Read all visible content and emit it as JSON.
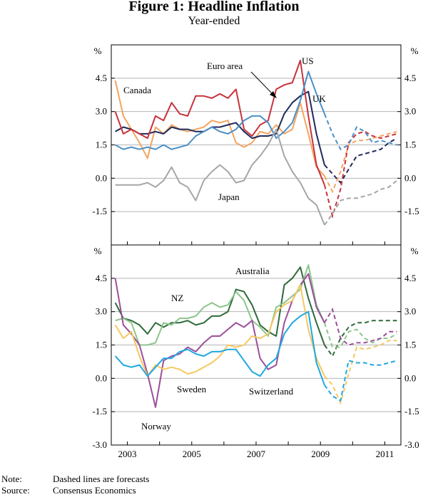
{
  "figure": {
    "title": "Figure 1: Headline Inflation",
    "subtitle": "Year-ended",
    "unit_label": "%"
  },
  "notes": {
    "note_label": "Note:",
    "note_text": "Dashed lines are forecasts",
    "source_label": "Source:",
    "source_text": "Consensus Economics"
  },
  "chart_data": [
    {
      "type": "line",
      "panel": "top",
      "ylabel": "%",
      "ylim": [
        -3.0,
        6.0
      ],
      "yticks": [
        -1.5,
        0.0,
        1.5,
        3.0,
        4.5
      ],
      "ytick_labels": [
        "-1.5",
        "0.0",
        "1.5",
        "3.0",
        "4.5"
      ],
      "xlim": [
        2002.5,
        2011.5
      ],
      "series": [
        {
          "name": "Canada",
          "label": "Canada",
          "color": "#f4a460",
          "x": [
            2002.625,
            2002.875,
            2003.125,
            2003.375,
            2003.625,
            2003.875,
            2004.125,
            2004.375,
            2004.625,
            2004.875,
            2005.125,
            2005.375,
            2005.625,
            2005.875,
            2006.125,
            2006.375,
            2006.625,
            2006.875,
            2007.125,
            2007.375,
            2007.625,
            2007.875,
            2008.125,
            2008.375,
            2008.625,
            2008.875,
            2009.125
          ],
          "y": [
            4.4,
            2.8,
            2.2,
            1.6,
            0.9,
            2.3,
            2.0,
            2.4,
            2.2,
            2.1,
            2.2,
            2.3,
            2.6,
            2.5,
            2.6,
            1.6,
            1.4,
            1.6,
            2.1,
            2.0,
            2.4,
            2.0,
            2.2,
            3.4,
            2.0,
            0.5,
            0.1
          ],
          "forecast": {
            "x": [
              2009.125,
              2009.375,
              2009.625,
              2009.875,
              2010.125,
              2010.375,
              2010.625,
              2010.875,
              2011.125,
              2011.375
            ],
            "y": [
              0.1,
              -0.6,
              0.3,
              1.5,
              1.7,
              1.7,
              1.8,
              1.9,
              2.0,
              2.1
            ]
          }
        },
        {
          "name": "Euro area",
          "label": "Euro area",
          "color": "#1f2a5c",
          "x": [
            2002.625,
            2002.875,
            2003.125,
            2003.375,
            2003.625,
            2003.875,
            2004.125,
            2004.375,
            2004.625,
            2004.875,
            2005.125,
            2005.375,
            2005.625,
            2005.875,
            2006.125,
            2006.375,
            2006.625,
            2006.875,
            2007.125,
            2007.375,
            2007.625,
            2007.875,
            2008.125,
            2008.375,
            2008.625,
            2008.875,
            2009.125
          ],
          "y": [
            2.1,
            2.3,
            2.2,
            2.0,
            2.0,
            2.1,
            2.0,
            2.3,
            2.2,
            2.2,
            2.1,
            2.1,
            2.3,
            2.3,
            2.4,
            2.5,
            2.1,
            1.8,
            1.9,
            1.9,
            2.0,
            2.9,
            3.4,
            3.7,
            3.9,
            2.0,
            0.6
          ],
          "forecast": {
            "x": [
              2009.125,
              2009.375,
              2009.625,
              2009.875,
              2010.125,
              2010.375,
              2010.625,
              2010.875,
              2011.125,
              2011.375
            ],
            "y": [
              0.6,
              0.2,
              -0.2,
              0.4,
              1.0,
              1.1,
              1.2,
              1.3,
              1.6,
              1.8
            ]
          }
        },
        {
          "name": "US",
          "label": "US",
          "color": "#c8323c",
          "x": [
            2002.625,
            2002.875,
            2003.125,
            2003.375,
            2003.625,
            2003.875,
            2004.125,
            2004.375,
            2004.625,
            2004.875,
            2005.125,
            2005.375,
            2005.625,
            2005.875,
            2006.125,
            2006.375,
            2006.625,
            2006.875,
            2007.125,
            2007.375,
            2007.625,
            2007.875,
            2008.125,
            2008.375,
            2008.625,
            2008.875,
            2009.125
          ],
          "y": [
            3.0,
            2.0,
            2.2,
            2.0,
            1.8,
            2.8,
            2.6,
            3.4,
            2.9,
            2.8,
            3.7,
            3.7,
            3.6,
            3.8,
            3.6,
            4.0,
            2.2,
            1.9,
            2.4,
            2.6,
            4.0,
            4.2,
            4.3,
            5.3,
            2.8,
            0.6,
            -0.3
          ],
          "forecast": {
            "x": [
              2009.125,
              2009.375,
              2009.625,
              2009.875,
              2010.125,
              2010.375,
              2010.625,
              2010.875,
              2011.125,
              2011.375
            ],
            "y": [
              -0.3,
              -1.7,
              -0.5,
              1.6,
              2.0,
              2.1,
              1.9,
              1.8,
              1.9,
              2.0
            ]
          }
        },
        {
          "name": "UK",
          "label": "UK",
          "color": "#4a90c8",
          "x": [
            2002.625,
            2002.875,
            2003.125,
            2003.375,
            2003.625,
            2003.875,
            2004.125,
            2004.375,
            2004.625,
            2004.875,
            2005.125,
            2005.375,
            2005.625,
            2005.875,
            2006.125,
            2006.375,
            2006.625,
            2006.875,
            2007.125,
            2007.375,
            2007.625,
            2007.875,
            2008.125,
            2008.375,
            2008.625,
            2008.875,
            2009.125
          ],
          "y": [
            1.5,
            1.3,
            1.4,
            1.3,
            1.4,
            1.3,
            1.5,
            1.3,
            1.4,
            1.5,
            1.9,
            2.1,
            2.3,
            2.1,
            2.0,
            2.2,
            2.6,
            2.8,
            2.8,
            2.5,
            1.8,
            2.1,
            2.5,
            3.5,
            4.8,
            3.8,
            2.9
          ],
          "forecast": {
            "x": [
              2009.125,
              2009.375,
              2009.625,
              2009.875,
              2010.125,
              2010.375,
              2010.625,
              2010.875,
              2011.125,
              2011.375
            ],
            "y": [
              2.9,
              2.0,
              1.3,
              1.5,
              2.3,
              2.1,
              1.6,
              1.7,
              1.6,
              1.5
            ]
          }
        },
        {
          "name": "Japan",
          "label": "Japan",
          "color": "#a6a6a6",
          "x": [
            2002.625,
            2002.875,
            2003.125,
            2003.375,
            2003.625,
            2003.875,
            2004.125,
            2004.375,
            2004.625,
            2004.875,
            2005.125,
            2005.375,
            2005.625,
            2005.875,
            2006.125,
            2006.375,
            2006.625,
            2006.875,
            2007.125,
            2007.375,
            2007.625,
            2007.875,
            2008.125,
            2008.375,
            2008.625,
            2008.875,
            2009.125
          ],
          "y": [
            -0.3,
            -0.3,
            -0.3,
            -0.3,
            -0.2,
            -0.4,
            -0.1,
            0.5,
            -0.2,
            -0.4,
            -1.0,
            -0.1,
            0.3,
            0.6,
            0.3,
            -0.2,
            -0.1,
            0.6,
            1.0,
            1.5,
            2.2,
            1.0,
            0.3,
            -0.2,
            -0.9,
            -1.2,
            -2.1
          ],
          "forecast": {
            "x": [
              2009.125,
              2009.375,
              2009.625,
              2009.875,
              2010.125,
              2010.375,
              2010.625,
              2010.875,
              2011.125,
              2011.375
            ],
            "y": [
              -2.1,
              -1.6,
              -1.0,
              -0.9,
              -0.9,
              -0.8,
              -0.7,
              -0.5,
              -0.4,
              -0.1
            ]
          }
        }
      ]
    },
    {
      "type": "line",
      "panel": "bottom",
      "ylabel": "%",
      "ylim": [
        -3.0,
        6.0
      ],
      "yticks": [
        -3.0,
        -1.5,
        0.0,
        1.5,
        3.0,
        4.5
      ],
      "ytick_labels": [
        "-3.0",
        "-1.5",
        "0.0",
        "1.5",
        "3.0",
        "4.5"
      ],
      "xlim": [
        2002.5,
        2011.5
      ],
      "xticks": [
        2003,
        2005,
        2007,
        2009,
        2011
      ],
      "xtick_labels": [
        "2003",
        "2005",
        "2007",
        "2009",
        "2011"
      ],
      "series": [
        {
          "name": "Australia",
          "label": "Australia",
          "color": "#2e6b3a",
          "x": [
            2002.625,
            2002.875,
            2003.125,
            2003.375,
            2003.625,
            2003.875,
            2004.125,
            2004.375,
            2004.625,
            2004.875,
            2005.125,
            2005.375,
            2005.625,
            2005.875,
            2006.125,
            2006.375,
            2006.625,
            2006.875,
            2007.125,
            2007.375,
            2007.625,
            2007.875,
            2008.125,
            2008.375,
            2008.625,
            2008.875,
            2009.125
          ],
          "y": [
            3.4,
            2.7,
            2.6,
            2.4,
            2.0,
            2.5,
            2.3,
            2.5,
            2.5,
            2.6,
            2.4,
            2.5,
            2.8,
            2.8,
            3.0,
            4.0,
            3.9,
            3.3,
            2.4,
            2.1,
            1.9,
            4.2,
            4.5,
            5.0,
            3.6,
            2.5,
            1.5
          ],
          "forecast": {
            "x": [
              2009.125,
              2009.375,
              2009.625,
              2009.875,
              2010.125,
              2010.375,
              2010.625,
              2010.875,
              2011.125,
              2011.375
            ],
            "y": [
              1.5,
              1.0,
              1.8,
              2.3,
              2.5,
              2.5,
              2.6,
              2.6,
              2.6,
              2.6
            ]
          }
        },
        {
          "name": "NZ",
          "label": "NZ",
          "color": "#8cc68c",
          "x": [
            2002.625,
            2002.875,
            2003.125,
            2003.375,
            2003.625,
            2003.875,
            2004.125,
            2004.375,
            2004.625,
            2004.875,
            2005.125,
            2005.375,
            2005.625,
            2005.875,
            2006.125,
            2006.375,
            2006.625,
            2006.875,
            2007.125,
            2007.375,
            2007.625,
            2007.875,
            2008.125,
            2008.375,
            2008.625,
            2008.875,
            2009.125
          ],
          "y": [
            2.6,
            2.7,
            2.5,
            1.5,
            1.5,
            1.6,
            2.5,
            2.4,
            2.7,
            2.7,
            2.8,
            3.2,
            3.4,
            3.2,
            3.3,
            3.9,
            3.5,
            2.6,
            2.3,
            1.9,
            3.2,
            3.4,
            3.7,
            4.0,
            5.1,
            3.3,
            2.5
          ],
          "forecast": {
            "x": [
              2009.125,
              2009.375,
              2009.625,
              2009.875,
              2010.125,
              2010.375,
              2010.625,
              2010.875,
              2011.125,
              2011.375
            ],
            "y": [
              2.5,
              1.4,
              1.4,
              2.1,
              2.2,
              1.8,
              1.6,
              1.8,
              1.8,
              2.0
            ]
          }
        },
        {
          "name": "Norway",
          "label": "Norway",
          "color": "#9b4f9b",
          "x": [
            2002.625,
            2002.875,
            2003.125,
            2003.375,
            2003.625,
            2003.875,
            2004.125,
            2004.375,
            2004.625,
            2004.875,
            2005.125,
            2005.375,
            2005.625,
            2005.875,
            2006.125,
            2006.375,
            2006.625,
            2006.875,
            2007.125,
            2007.375,
            2007.625,
            2007.875,
            2008.125,
            2008.375,
            2008.625,
            2008.875,
            2009.125
          ],
          "y": [
            4.5,
            2.4,
            2.0,
            1.5,
            0.2,
            -1.3,
            0.8,
            1.0,
            1.1,
            1.4,
            1.2,
            1.6,
            1.9,
            1.9,
            2.2,
            2.5,
            2.3,
            2.6,
            0.9,
            0.4,
            0.6,
            2.5,
            3.5,
            4.2,
            4.7,
            3.2,
            2.5
          ],
          "forecast": {
            "x": [
              2009.125,
              2009.375,
              2009.625,
              2009.875,
              2010.125,
              2010.375,
              2010.625,
              2010.875,
              2011.125,
              2011.375
            ],
            "y": [
              2.5,
              3.1,
              1.8,
              1.5,
              1.6,
              1.6,
              1.7,
              1.8,
              2.1,
              2.1
            ]
          }
        },
        {
          "name": "Sweden",
          "label": "Sweden",
          "color": "#f5c861",
          "x": [
            2002.625,
            2002.875,
            2003.125,
            2003.375,
            2003.625,
            2003.875,
            2004.125,
            2004.375,
            2004.625,
            2004.875,
            2005.125,
            2005.375,
            2005.625,
            2005.875,
            2006.125,
            2006.375,
            2006.625,
            2006.875,
            2007.125,
            2007.375,
            2007.625,
            2007.875,
            2008.125,
            2008.375,
            2008.625,
            2008.875,
            2009.125
          ],
          "y": [
            2.4,
            1.8,
            2.1,
            1.0,
            0.1,
            0.6,
            0.4,
            0.5,
            0.4,
            0.2,
            0.3,
            0.5,
            0.7,
            1.0,
            1.5,
            1.4,
            1.5,
            1.9,
            1.8,
            2.0,
            3.0,
            3.3,
            3.5,
            4.2,
            2.2,
            0.9,
            0.1
          ],
          "forecast": {
            "x": [
              2009.125,
              2009.375,
              2009.625,
              2009.875,
              2010.125,
              2010.375,
              2010.625,
              2010.875,
              2011.125,
              2011.375
            ],
            "y": [
              0.1,
              -0.3,
              -1.1,
              0.2,
              1.4,
              1.3,
              1.4,
              1.5,
              1.7,
              1.7
            ]
          }
        },
        {
          "name": "Switzerland",
          "label": "Switzerland",
          "color": "#1fa8e0",
          "x": [
            2002.625,
            2002.875,
            2003.125,
            2003.375,
            2003.625,
            2003.875,
            2004.125,
            2004.375,
            2004.625,
            2004.875,
            2005.125,
            2005.375,
            2005.625,
            2005.875,
            2006.125,
            2006.375,
            2006.625,
            2006.875,
            2007.125,
            2007.375,
            2007.625,
            2007.875,
            2008.125,
            2008.375,
            2008.625,
            2008.875,
            2009.125
          ],
          "y": [
            1.0,
            0.6,
            0.5,
            0.6,
            0.1,
            0.5,
            0.9,
            0.9,
            1.2,
            1.3,
            1.1,
            1.0,
            1.2,
            1.2,
            1.3,
            1.3,
            0.8,
            0.3,
            0.1,
            0.6,
            0.9,
            2.0,
            2.5,
            2.8,
            3.0,
            0.7,
            -0.3
          ],
          "forecast": {
            "x": [
              2009.125,
              2009.375,
              2009.625,
              2009.875,
              2010.125,
              2010.375,
              2010.625,
              2010.875,
              2011.125,
              2011.375
            ],
            "y": [
              -0.3,
              -0.8,
              -1.0,
              0.8,
              0.7,
              0.7,
              0.6,
              0.6,
              0.7,
              0.8
            ]
          }
        }
      ]
    }
  ]
}
